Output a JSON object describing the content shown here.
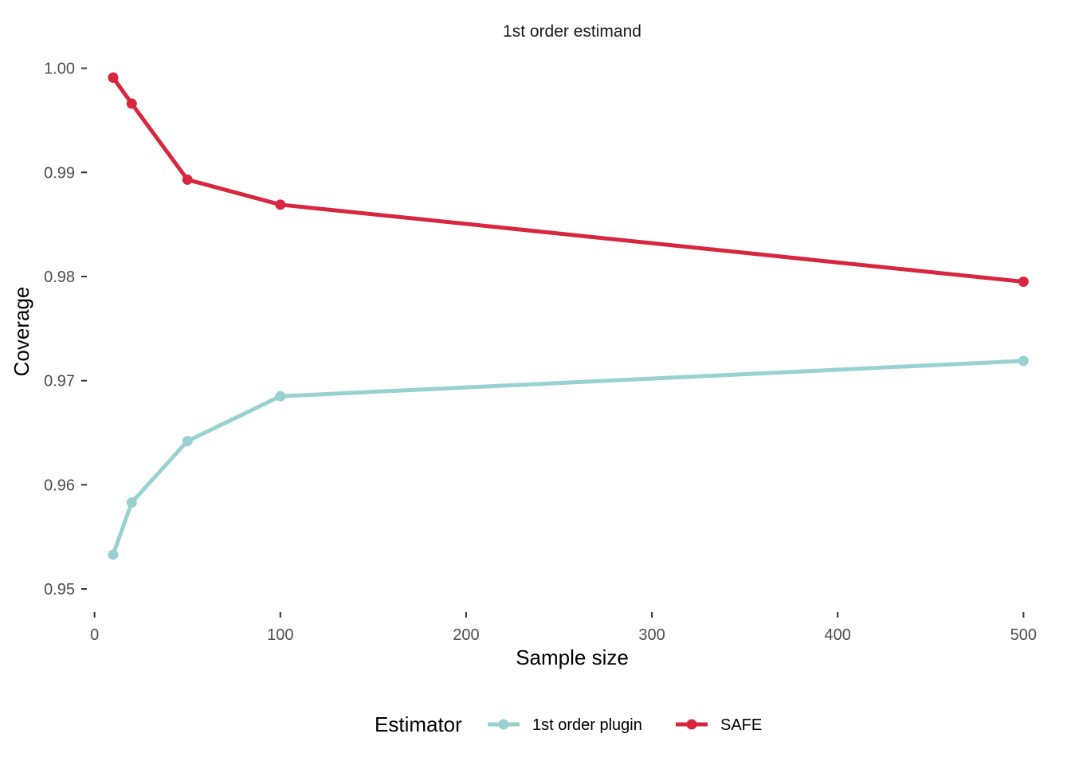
{
  "chart_data": {
    "type": "line",
    "title": "1st order estimand",
    "xlabel": "Sample size",
    "ylabel": "Coverage",
    "xlim": [
      -5,
      505
    ],
    "ylim": [
      0.9484,
      1.0015
    ],
    "x_ticks": [
      0,
      100,
      200,
      300,
      400,
      500
    ],
    "x_tick_labels": [
      "0",
      "100",
      "200",
      "300",
      "400",
      "500"
    ],
    "y_ticks": [
      0.95,
      0.96,
      0.97,
      0.98,
      0.99,
      1.0
    ],
    "y_tick_labels": [
      "0.95",
      "0.96",
      "0.97",
      "0.98",
      "0.99",
      "1.00"
    ],
    "grid": false,
    "legend": {
      "title": "Estimator",
      "position": "bottom"
    },
    "series": [
      {
        "name": "1st order plugin",
        "color": "#99d1d1",
        "x": [
          10,
          20,
          50,
          100,
          500
        ],
        "y": [
          0.9533,
          0.9583,
          0.9642,
          0.9685,
          0.9719
        ]
      },
      {
        "name": "SAFE",
        "color": "#d7263d",
        "x": [
          10,
          20,
          50,
          100,
          500
        ],
        "y": [
          0.9991,
          0.9966,
          0.9893,
          0.9869,
          0.9795
        ]
      }
    ]
  }
}
